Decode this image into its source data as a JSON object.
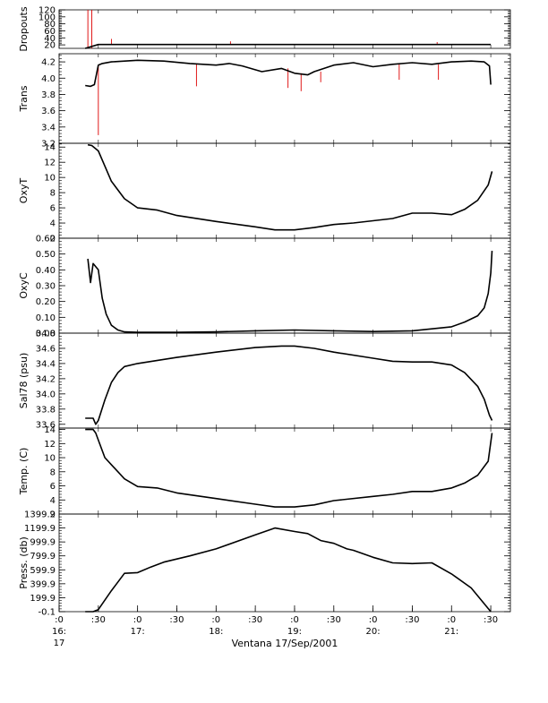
{
  "chart_data": {
    "type": "line",
    "layout": "stacked-panels-shared-x",
    "grid": false,
    "x_axis": {
      "label": "Ventana 17/Sep/2001",
      "range": [
        "16:00",
        "21:45"
      ],
      "ticks": [
        {
          "value": "16:00",
          "label": ":0",
          "sub": "16:"
        },
        {
          "value": "16:30",
          "label": ":30",
          "sub": ""
        },
        {
          "value": "17:00",
          "label": ":0",
          "sub": "17:"
        },
        {
          "value": "17:30",
          "label": ":30",
          "sub": ""
        },
        {
          "value": "18:00",
          "label": ":0",
          "sub": "18:"
        },
        {
          "value": "18:30",
          "label": ":30",
          "sub": ""
        },
        {
          "value": "19:00",
          "label": ":0",
          "sub": "19:"
        },
        {
          "value": "19:30",
          "label": ":30",
          "sub": ""
        },
        {
          "value": "20:00",
          "label": ":0",
          "sub": "20:"
        },
        {
          "value": "20:30",
          "label": ":30",
          "sub": ""
        },
        {
          "value": "21:00",
          "label": ":0",
          "sub": "21:"
        },
        {
          "value": "21:30",
          "label": ":30",
          "sub": ""
        }
      ],
      "extra_label": "17"
    },
    "colors": {
      "series": "#000000",
      "raw": "#dd0000"
    },
    "panels": [
      {
        "ylabel": "Dropouts",
        "ylim": [
          10,
          120
        ],
        "ticks": [
          20,
          40,
          60,
          80,
          100,
          120
        ],
        "tick_labels": [
          "20",
          "40",
          "60",
          "80",
          "100",
          "120"
        ],
        "series": [
          {
            "x": [
              "16:20",
              "16:30",
              "17:00",
              "17:30",
              "18:00",
              "18:30",
              "19:00",
              "19:30",
              "20:00",
              "20:30",
              "21:00",
              "21:30"
            ],
            "values": [
              0,
              21,
              21,
              21,
              21,
              21,
              21,
              21,
              21,
              21,
              21,
              21
            ]
          }
        ],
        "raw_spikes": [
          {
            "x": "16:22",
            "value": 120
          },
          {
            "x": "16:25",
            "value": 120
          },
          {
            "x": "16:40",
            "value": 37
          },
          {
            "x": "18:11",
            "value": 30
          },
          {
            "x": "20:49",
            "value": 28
          }
        ]
      },
      {
        "ylabel": "Trans",
        "ylim": [
          3.2,
          4.3
        ],
        "ticks": [
          3.2,
          3.4,
          3.6,
          3.8,
          4.0,
          4.2
        ],
        "tick_labels": [
          "3.2",
          "3.4",
          "3.6",
          "3.8",
          "4.0",
          "4.2"
        ],
        "series": [
          {
            "x": [
              "16:20",
              "16:24",
              "16:27",
              "16:30",
              "16:33",
              "16:40",
              "17:00",
              "17:20",
              "17:40",
              "18:00",
              "18:10",
              "18:20",
              "18:35",
              "18:50",
              "19:00",
              "19:10",
              "19:15",
              "19:30",
              "19:45",
              "20:00",
              "20:15",
              "20:30",
              "20:45",
              "21:00",
              "21:15",
              "21:25",
              "21:29",
              "21:30"
            ],
            "values": [
              3.91,
              3.9,
              3.92,
              4.16,
              4.18,
              4.2,
              4.22,
              4.21,
              4.18,
              4.16,
              4.18,
              4.15,
              4.08,
              4.12,
              4.06,
              4.04,
              4.08,
              4.16,
              4.19,
              4.14,
              4.17,
              4.19,
              4.17,
              4.2,
              4.21,
              4.2,
              4.15,
              3.92
            ]
          }
        ],
        "raw_spikes": [
          {
            "x": "16:30",
            "value": 3.3
          },
          {
            "x": "17:45",
            "value": 3.9
          },
          {
            "x": "18:55",
            "value": 3.88
          },
          {
            "x": "19:05",
            "value": 3.84
          },
          {
            "x": "19:20",
            "value": 3.95
          },
          {
            "x": "20:20",
            "value": 3.98
          },
          {
            "x": "20:50",
            "value": 3.98
          }
        ]
      },
      {
        "ylabel": "OxyT",
        "ylim": [
          2,
          14.5
        ],
        "ticks": [
          2,
          4,
          6,
          8,
          10,
          12,
          14
        ],
        "tick_labels": [
          "2",
          "4",
          "6",
          "8",
          "10",
          "12",
          "14"
        ],
        "series": [
          {
            "x": [
              "16:22",
              "16:25",
              "16:30",
              "16:35",
              "16:40",
              "16:50",
              "17:00",
              "17:15",
              "17:30",
              "18:00",
              "18:30",
              "18:45",
              "19:00",
              "19:15",
              "19:30",
              "19:45",
              "20:00",
              "20:15",
              "20:30",
              "20:45",
              "21:00",
              "21:10",
              "21:20",
              "21:28",
              "21:31"
            ],
            "values": [
              14.3,
              14.2,
              13.5,
              11.5,
              9.5,
              7.2,
              6.0,
              5.7,
              5.0,
              4.2,
              3.5,
              3.1,
              3.1,
              3.4,
              3.8,
              4.0,
              4.3,
              4.6,
              5.3,
              5.3,
              5.1,
              5.8,
              7.0,
              9.0,
              10.8
            ]
          }
        ]
      },
      {
        "ylabel": "OxyC",
        "ylim": [
          0,
          0.6
        ],
        "ticks": [
          0.0,
          0.1,
          0.2,
          0.3,
          0.4,
          0.5,
          0.6
        ],
        "tick_labels": [
          "0.00",
          "0.10",
          "0.20",
          "0.30",
          "0.40",
          "0.50",
          "0.60"
        ],
        "series": [
          {
            "x": [
              "16:22",
              "16:24",
              "16:26",
              "16:30",
              "16:33",
              "16:36",
              "16:40",
              "16:45",
              "16:50",
              "17:00",
              "17:30",
              "18:00",
              "18:30",
              "19:00",
              "19:30",
              "20:00",
              "20:30",
              "21:00",
              "21:10",
              "21:20",
              "21:25",
              "21:28",
              "21:30",
              "21:31"
            ],
            "values": [
              0.47,
              0.32,
              0.44,
              0.4,
              0.22,
              0.12,
              0.05,
              0.02,
              0.008,
              0.005,
              0.005,
              0.008,
              0.015,
              0.02,
              0.015,
              0.01,
              0.015,
              0.04,
              0.07,
              0.11,
              0.16,
              0.25,
              0.38,
              0.52
            ]
          }
        ]
      },
      {
        "ylabel": "Sal78 (psu)",
        "ylim": [
          33.55,
          34.8
        ],
        "ticks": [
          33.6,
          33.8,
          34.0,
          34.2,
          34.4,
          34.6,
          34.8
        ],
        "tick_labels": [
          "33.6",
          "33.8",
          "34.0",
          "34.2",
          "34.4",
          "34.6",
          "34.8"
        ],
        "series": [
          {
            "x": [
              "16:20",
              "16:26",
              "16:28",
              "16:30",
              "16:35",
              "16:40",
              "16:45",
              "16:50",
              "17:00",
              "17:30",
              "18:00",
              "18:30",
              "18:50",
              "19:00",
              "19:15",
              "19:30",
              "20:00",
              "20:15",
              "20:30",
              "20:45",
              "21:00",
              "21:10",
              "21:20",
              "21:25",
              "21:29",
              "21:31"
            ],
            "values": [
              33.68,
              33.68,
              33.6,
              33.65,
              33.92,
              34.15,
              34.28,
              34.36,
              34.4,
              34.48,
              34.55,
              34.61,
              34.63,
              34.63,
              34.6,
              34.55,
              34.47,
              34.43,
              34.42,
              34.42,
              34.38,
              34.28,
              34.1,
              33.93,
              33.72,
              33.65
            ]
          }
        ]
      },
      {
        "ylabel": "Temp. (C)",
        "ylim": [
          2,
          14.2
        ],
        "ticks": [
          2,
          4,
          6,
          8,
          10,
          12,
          14
        ],
        "tick_labels": [
          "2",
          "4",
          "6",
          "8",
          "10",
          "12",
          "14"
        ],
        "series": [
          {
            "x": [
              "16:20",
              "16:26",
              "16:28",
              "16:30",
              "16:35",
              "16:40",
              "16:50",
              "17:00",
              "17:15",
              "17:30",
              "18:00",
              "18:30",
              "18:45",
              "19:00",
              "19:15",
              "19:30",
              "20:00",
              "20:15",
              "20:30",
              "20:45",
              "21:00",
              "21:10",
              "21:20",
              "21:28",
              "21:31"
            ],
            "values": [
              14.0,
              14.0,
              13.5,
              12.5,
              10.0,
              9.0,
              7.0,
              5.9,
              5.7,
              5.0,
              4.2,
              3.4,
              3.0,
              3.0,
              3.3,
              3.9,
              4.5,
              4.8,
              5.2,
              5.2,
              5.7,
              6.4,
              7.5,
              9.5,
              13.5
            ]
          }
        ]
      },
      {
        "ylabel": "Press. (db)",
        "ylim": [
          -0.1,
          1399.9
        ],
        "ticks": [
          -0.1,
          199.9,
          399.9,
          599.9,
          799.9,
          999.9,
          1199.9,
          1399.9
        ],
        "tick_labels": [
          "-0.1",
          "199.9",
          "399.9",
          "599.9",
          "799.9",
          "999.9",
          "1199.9",
          "1399.9"
        ],
        "series": [
          {
            "x": [
              "16:20",
              "16:26",
              "16:30",
              "16:40",
              "16:50",
              "17:00",
              "17:10",
              "17:20",
              "17:40",
              "18:00",
              "18:30",
              "18:45",
              "19:00",
              "19:10",
              "19:20",
              "19:30",
              "19:40",
              "19:45",
              "20:00",
              "20:15",
              "20:30",
              "20:45",
              "21:00",
              "21:15",
              "21:30"
            ],
            "values": [
              -0.1,
              -0.1,
              30,
              300,
              550,
              560,
              640,
              710,
              800,
              900,
              1100,
              1200,
              1150,
              1120,
              1020,
              980,
              900,
              880,
              780,
              700,
              690,
              700,
              540,
              340,
              -0.1
            ]
          }
        ]
      }
    ]
  }
}
